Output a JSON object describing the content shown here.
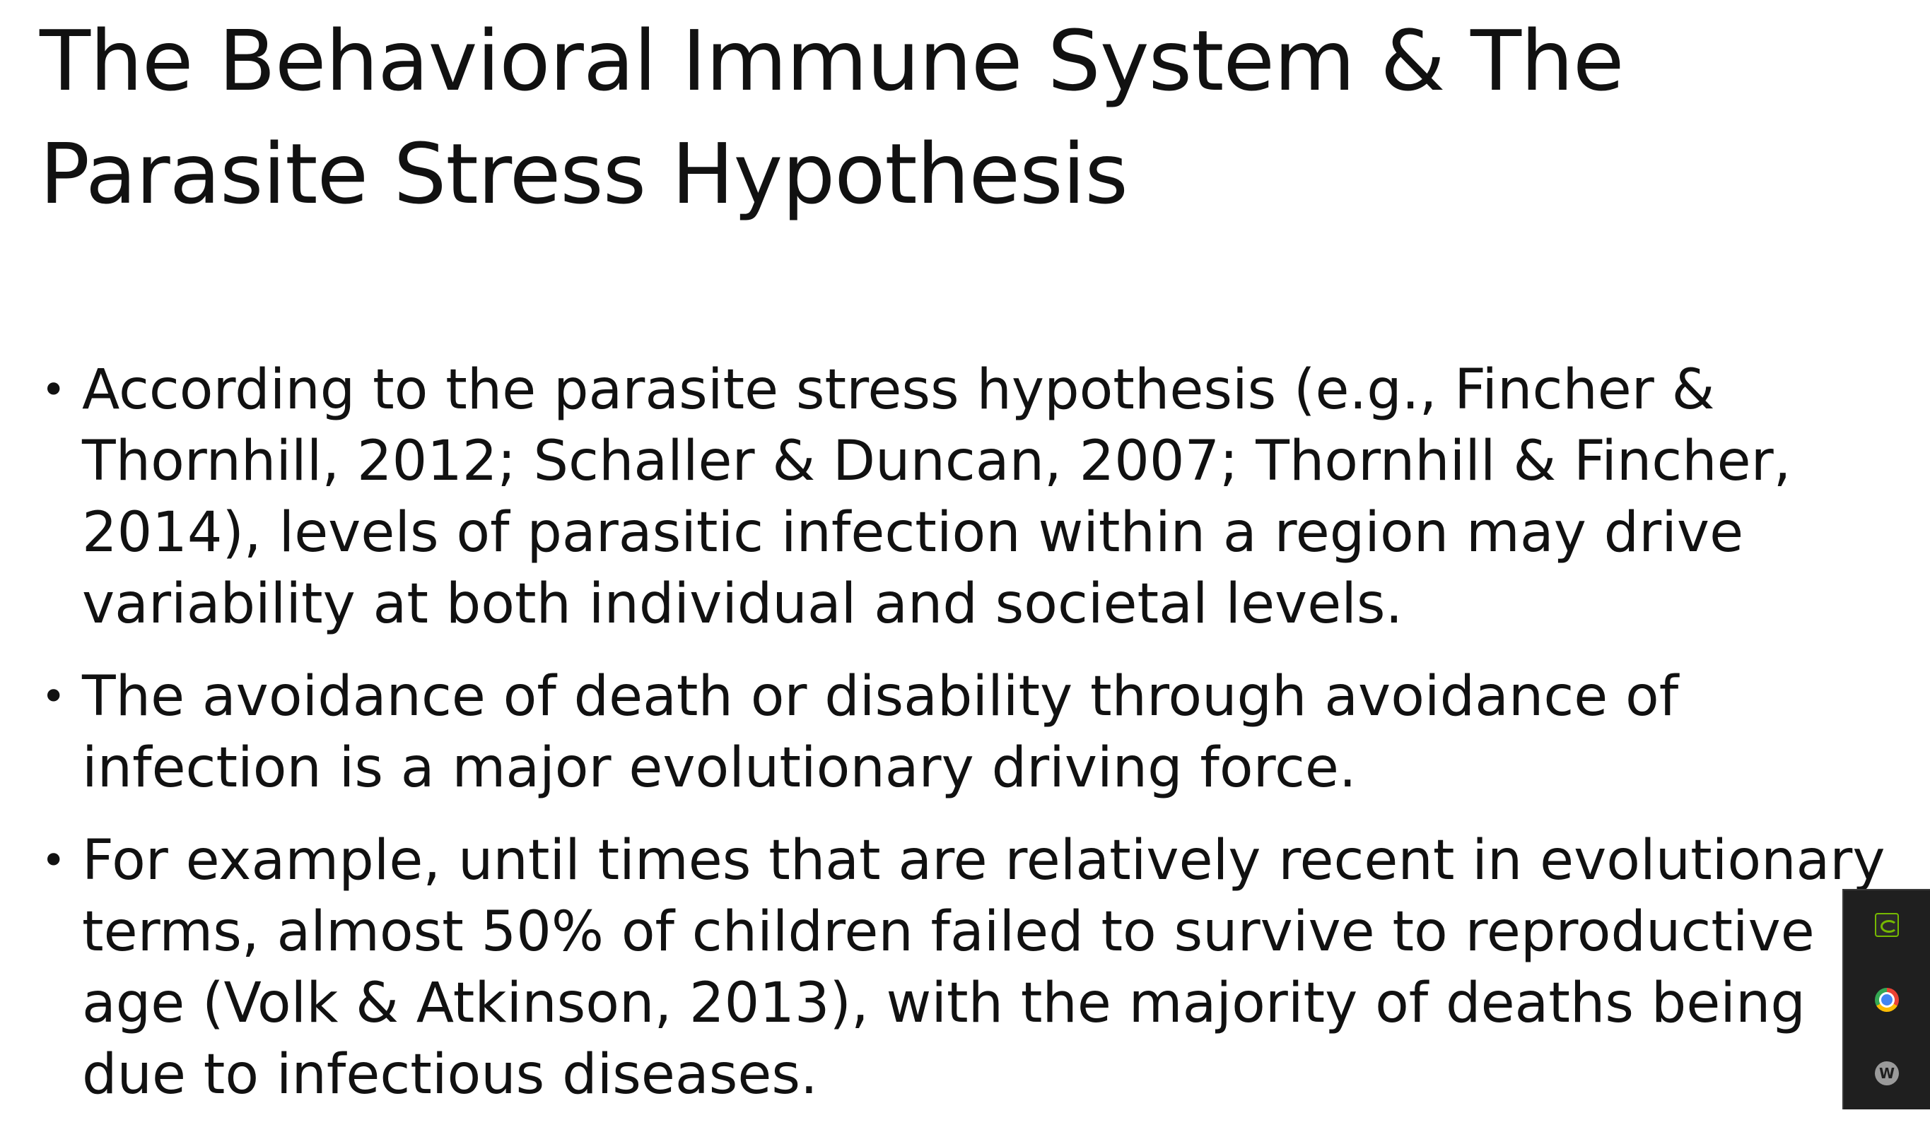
{
  "slide": {
    "title_line1": "The Behavioral Immune System & The",
    "title_line2": "Parasite Stress Hypothesis",
    "bullet_char": "•",
    "bullets": [
      {
        "text": "According to the parasite stress hypothesis (e.g., Fincher & Thornhill, 2012; Schaller & Duncan, 2007; Thornhill & Fincher, 2014), levels of parasitic infection within a region may drive variability at both individual and societal levels."
      },
      {
        "text": "The avoidance of death or disability through avoidance of infection is a major evolutionary driving force."
      },
      {
        "text": "For example, until times that are relatively recent in evolutionary terms, almost 50% of children failed to survive to reproductive age (Volk & Atkinson, 2013), with the majority of deaths being due to infectious diseases."
      }
    ]
  },
  "taskbar": {
    "icons": [
      "nvidia-icon",
      "chrome-icon",
      "w-icon"
    ],
    "w_icon_letter": "W"
  },
  "colors": {
    "background": "#ffffff",
    "text": "#111111",
    "tray_background": "#1f1f1f"
  }
}
